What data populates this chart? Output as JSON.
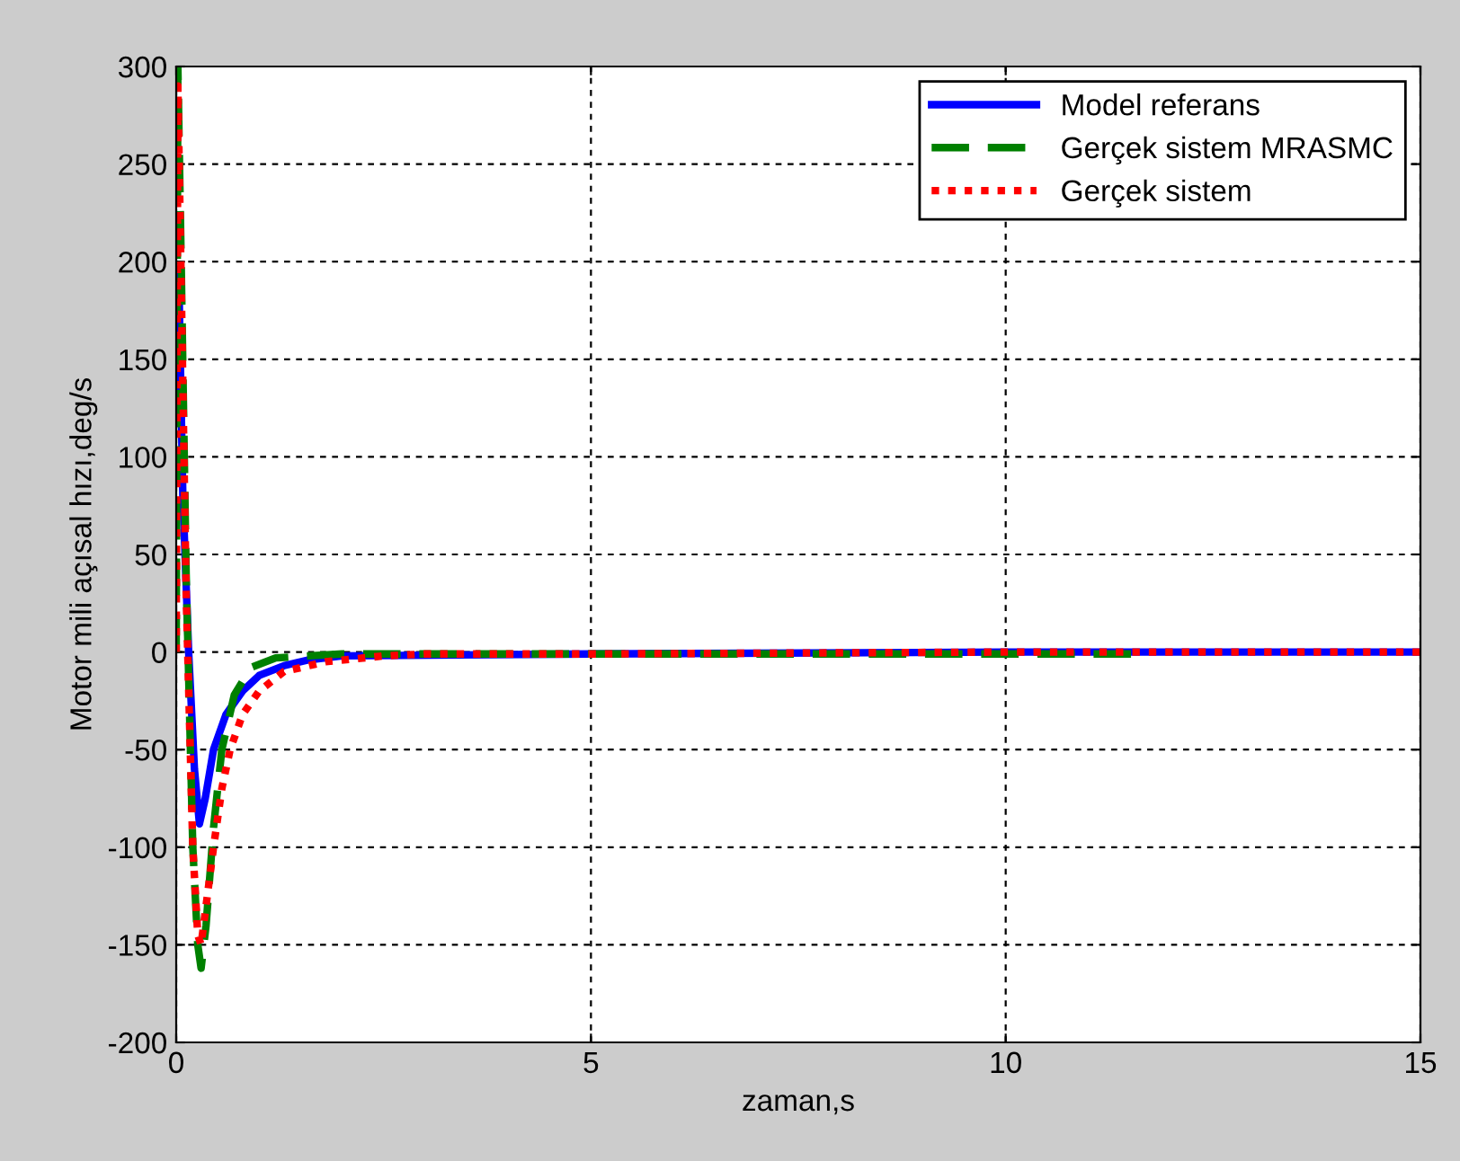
{
  "chart_data": {
    "type": "line",
    "xlabel": "zaman,s",
    "ylabel": "Motor mili açısal hızı,deg/s",
    "xlim": [
      0,
      15
    ],
    "ylim": [
      -200,
      300
    ],
    "xticks": [
      0,
      5,
      10,
      15
    ],
    "yticks": [
      -200,
      -150,
      -100,
      -50,
      0,
      50,
      100,
      150,
      200,
      250,
      300
    ],
    "grid": true,
    "legend": "top right",
    "series": [
      {
        "name": "Model referans",
        "color": "#0000ff",
        "line_style": "solid",
        "x": [
          0.03,
          0.08,
          0.15,
          0.22,
          0.28,
          0.35,
          0.45,
          0.6,
          0.8,
          1.0,
          1.3,
          1.6,
          2.0,
          5,
          10,
          15
        ],
        "values": [
          195,
          80,
          0,
          -60,
          -88,
          -75,
          -50,
          -32,
          -20,
          -12,
          -7,
          -4,
          -2,
          -1,
          0,
          0
        ]
      },
      {
        "name": "Gerçek sistem MRASMC",
        "color": "#008000",
        "line_style": "dashed",
        "x": [
          0,
          0.02,
          0.06,
          0.12,
          0.2,
          0.26,
          0.3,
          0.36,
          0.45,
          0.55,
          0.7,
          0.9,
          1.2,
          1.6,
          2.0,
          5,
          10,
          11.6
        ],
        "values": [
          0,
          300,
          200,
          40,
          -100,
          -150,
          -162,
          -140,
          -90,
          -50,
          -22,
          -8,
          -3,
          -2,
          -1,
          -1,
          -1,
          -1
        ]
      },
      {
        "name": "Gerçek sistem",
        "color": "#ff0000",
        "line_style": "dotted",
        "x": [
          0,
          0.02,
          0.06,
          0.12,
          0.2,
          0.26,
          0.3,
          0.36,
          0.45,
          0.55,
          0.65,
          0.8,
          1.0,
          1.3,
          1.8,
          2.5,
          3,
          5,
          10,
          15
        ],
        "values": [
          0,
          290,
          190,
          30,
          -100,
          -145,
          -150,
          -130,
          -100,
          -70,
          -50,
          -32,
          -20,
          -10,
          -5,
          -2,
          -1,
          -1,
          0,
          0
        ]
      }
    ]
  }
}
